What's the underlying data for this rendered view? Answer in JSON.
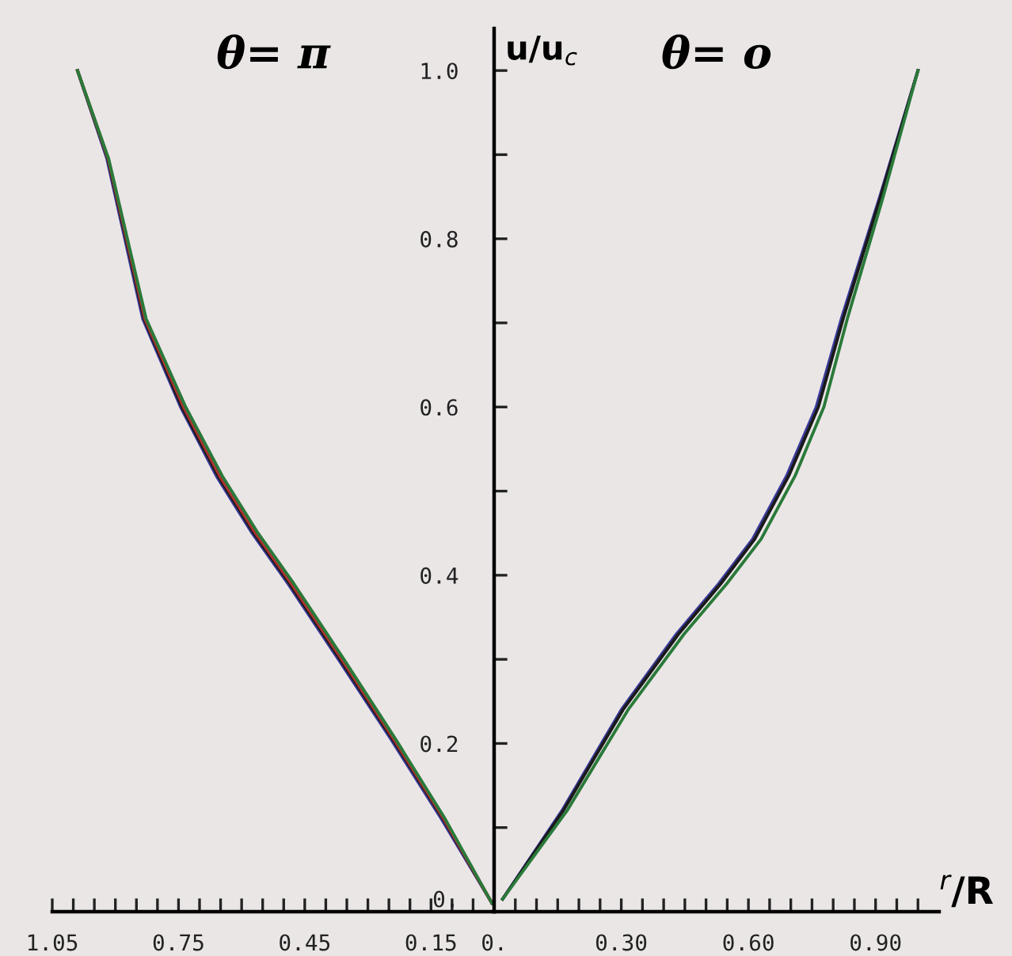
{
  "chart_data": [
    {
      "type": "line",
      "title": "θ= π",
      "xlim": [
        1.05,
        0
      ],
      "ylim": [
        0,
        1.05
      ],
      "tick_labels": "x",
      "grid": false,
      "legend": false,
      "marker": "none",
      "line_style": "solid",
      "xticks": [
        {
          "value": 1.05,
          "label": "1.05"
        },
        {
          "value": 1.0,
          "label": null
        },
        {
          "value": 0.95,
          "label": null
        },
        {
          "value": 0.9,
          "label": null
        },
        {
          "value": 0.85,
          "label": null
        },
        {
          "value": 0.8,
          "label": null
        },
        {
          "value": 0.75,
          "label": "0.75"
        },
        {
          "value": 0.7,
          "label": null
        },
        {
          "value": 0.65,
          "label": null
        },
        {
          "value": 0.6,
          "label": null
        },
        {
          "value": 0.55,
          "label": null
        },
        {
          "value": 0.5,
          "label": null
        },
        {
          "value": 0.45,
          "label": "0.45"
        },
        {
          "value": 0.4,
          "label": null
        },
        {
          "value": 0.35,
          "label": null
        },
        {
          "value": 0.3,
          "label": null
        },
        {
          "value": 0.25,
          "label": null
        },
        {
          "value": 0.2,
          "label": null
        },
        {
          "value": 0.15,
          "label": "0.15"
        },
        {
          "value": 0.1,
          "label": null
        },
        {
          "value": 0.05,
          "label": null
        },
        {
          "value": 0,
          "label": "0."
        }
      ],
      "series": [
        {
          "color": "#3a3a9a",
          "x": [
            0.99,
            0.92,
            0.835,
            0.745,
            0.66,
            0.575,
            0.49,
            0.37,
            0.245,
            0.125,
            0.005
          ],
          "values": [
            1.0,
            0.895,
            0.705,
            0.6,
            0.518,
            0.45,
            0.39,
            0.3,
            0.205,
            0.11,
            0.01
          ]
        },
        {
          "color": "#1a1a1a",
          "x": [
            0.99,
            0.918,
            0.832,
            0.742,
            0.656,
            0.571,
            0.486,
            0.366,
            0.241,
            0.121,
            0.005
          ],
          "values": [
            1.0,
            0.895,
            0.705,
            0.6,
            0.518,
            0.45,
            0.39,
            0.3,
            0.205,
            0.11,
            0.01
          ]
        },
        {
          "color": "#b03030",
          "x": [
            0.99,
            0.917,
            0.83,
            0.738,
            0.652,
            0.567,
            0.482,
            0.362,
            0.238,
            0.119,
            0.005
          ],
          "values": [
            1.0,
            0.895,
            0.705,
            0.6,
            0.518,
            0.45,
            0.39,
            0.3,
            0.205,
            0.11,
            0.01
          ]
        },
        {
          "color": "#2a7a3a",
          "x": [
            0.99,
            0.916,
            0.827,
            0.733,
            0.646,
            0.561,
            0.476,
            0.357,
            0.234,
            0.116,
            0.005
          ],
          "values": [
            1.0,
            0.895,
            0.705,
            0.6,
            0.518,
            0.45,
            0.39,
            0.3,
            0.205,
            0.11,
            0.01
          ]
        }
      ]
    },
    {
      "type": "line",
      "title": "θ= o",
      "xlabel": "$^{r}$/R",
      "ylabel": "u/u$_{c}$",
      "xlim": [
        0,
        1.05
      ],
      "ylim": [
        0,
        1.05
      ],
      "grid": false,
      "legend": false,
      "marker": "none",
      "line_style": "solid",
      "xticks": [
        {
          "value": 0.05,
          "label": null
        },
        {
          "value": 0.1,
          "label": null
        },
        {
          "value": 0.15,
          "label": null
        },
        {
          "value": 0.2,
          "label": null
        },
        {
          "value": 0.25,
          "label": null
        },
        {
          "value": 0.3,
          "label": "0.30"
        },
        {
          "value": 0.35,
          "label": null
        },
        {
          "value": 0.4,
          "label": null
        },
        {
          "value": 0.45,
          "label": null
        },
        {
          "value": 0.5,
          "label": null
        },
        {
          "value": 0.55,
          "label": null
        },
        {
          "value": 0.6,
          "label": "0.60"
        },
        {
          "value": 0.65,
          "label": null
        },
        {
          "value": 0.7,
          "label": null
        },
        {
          "value": 0.75,
          "label": null
        },
        {
          "value": 0.8,
          "label": null
        },
        {
          "value": 0.85,
          "label": null
        },
        {
          "value": 0.9,
          "label": "0.90"
        },
        {
          "value": 0.95,
          "label": null
        },
        {
          "value": 1.0,
          "label": null
        }
      ],
      "yticks": [
        {
          "value": 0,
          "label": "0."
        },
        {
          "value": 0.1,
          "label": null
        },
        {
          "value": 0.2,
          "label": "0.2"
        },
        {
          "value": 0.3,
          "label": null
        },
        {
          "value": 0.4,
          "label": "0.4"
        },
        {
          "value": 0.5,
          "label": null
        },
        {
          "value": 0.6,
          "label": "0.6"
        },
        {
          "value": 0.7,
          "label": null
        },
        {
          "value": 0.8,
          "label": "0.8"
        },
        {
          "value": 0.9,
          "label": null
        },
        {
          "value": 1.0,
          "label": "1.0"
        }
      ],
      "series": [
        {
          "color": "#3a3a9a",
          "x": [
            0.02,
            0.16,
            0.3,
            0.43,
            0.53,
            0.61,
            0.69,
            0.76,
            0.82,
            0.91,
            1.0
          ],
          "values": [
            0.015,
            0.12,
            0.24,
            0.33,
            0.39,
            0.443,
            0.518,
            0.6,
            0.706,
            0.85,
            1.0
          ]
        },
        {
          "color": "#1a1a1a",
          "x": [
            0.02,
            0.163,
            0.304,
            0.435,
            0.535,
            0.615,
            0.695,
            0.765,
            0.824,
            0.912,
            1.0
          ],
          "values": [
            0.015,
            0.12,
            0.24,
            0.33,
            0.39,
            0.443,
            0.518,
            0.6,
            0.706,
            0.85,
            1.0
          ]
        },
        {
          "color": "#2a7a3a",
          "x": [
            0.02,
            0.172,
            0.316,
            0.448,
            0.549,
            0.63,
            0.71,
            0.778,
            0.834,
            0.918,
            1.0
          ],
          "values": [
            0.015,
            0.12,
            0.24,
            0.33,
            0.39,
            0.443,
            0.518,
            0.6,
            0.706,
            0.85,
            1.0
          ]
        }
      ]
    }
  ]
}
